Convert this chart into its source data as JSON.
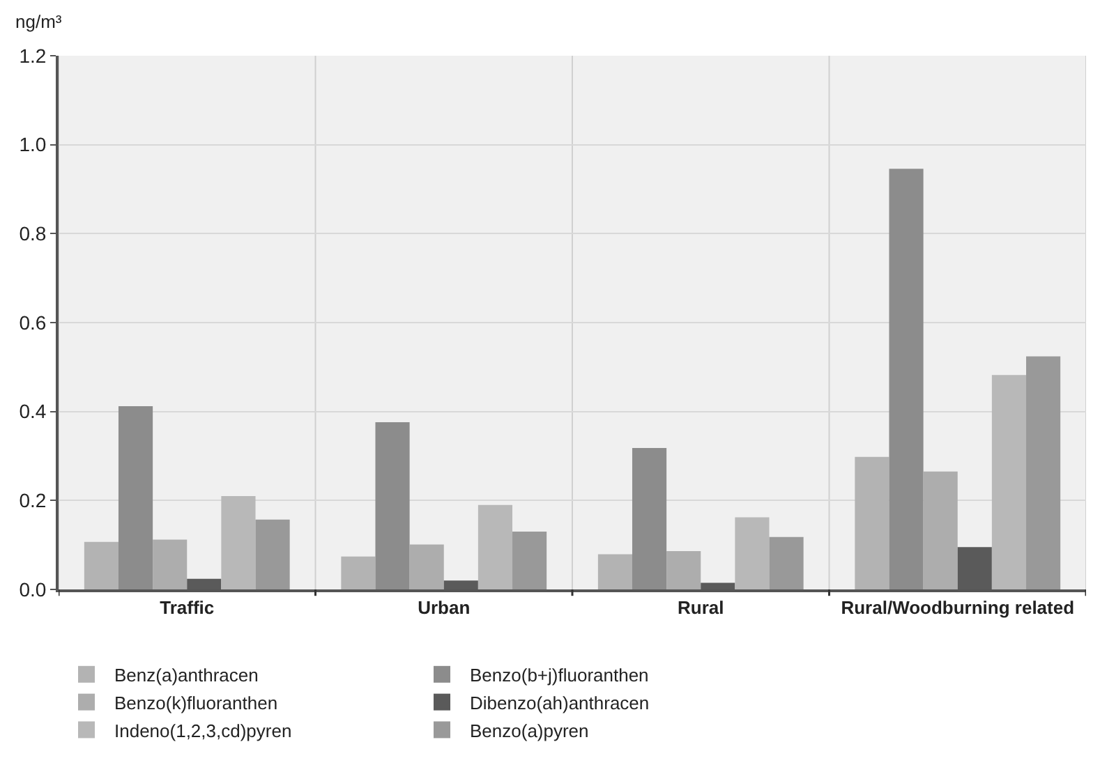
{
  "chart_data": {
    "type": "bar",
    "ylabel": "ng/m³",
    "categories": [
      "Traffic",
      "Urban",
      "Rural",
      "Rural/Woodburning related"
    ],
    "series": [
      {
        "name": "Benz(a)anthracen",
        "color": "#b3b3b3",
        "values": [
          0.107,
          0.074,
          0.079,
          0.298
        ]
      },
      {
        "name": "Benzo(b+j)fluoranthen",
        "color": "#8c8c8c",
        "values": [
          0.412,
          0.376,
          0.318,
          0.946
        ]
      },
      {
        "name": "Benzo(k)fluoranthen",
        "color": "#adadad",
        "values": [
          0.112,
          0.101,
          0.086,
          0.265
        ]
      },
      {
        "name": "Dibenzo(ah)anthracen",
        "color": "#5a5a5a",
        "values": [
          0.024,
          0.02,
          0.015,
          0.095
        ]
      },
      {
        "name": "Indeno(1,2,3,cd)pyren",
        "color": "#b8b8b8",
        "values": [
          0.21,
          0.19,
          0.162,
          0.482
        ]
      },
      {
        "name": "Benzo(a)pyren",
        "color": "#999999",
        "values": [
          0.157,
          0.13,
          0.118,
          0.524
        ]
      }
    ],
    "ylim": [
      0,
      1.2
    ],
    "yticks": [
      {
        "value": 0,
        "label": "0.0"
      },
      0.2,
      0.4,
      0.6,
      0.8,
      {
        "value": 1,
        "label": "1.0"
      },
      1.2
    ],
    "grid": true,
    "legend": "bottom"
  }
}
